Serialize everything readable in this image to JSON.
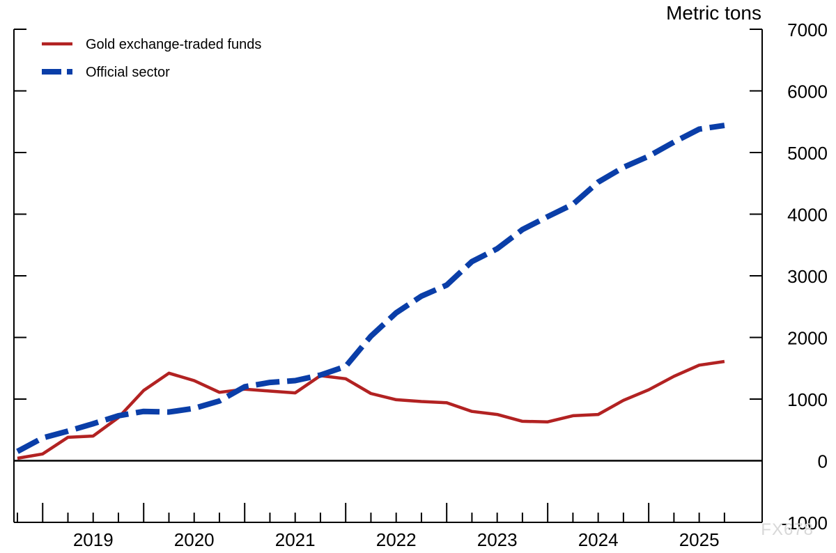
{
  "chart_data": {
    "type": "line",
    "unit_label": "Metric tons",
    "x_ticks": [
      "2019",
      "2020",
      "2021",
      "2022",
      "2023",
      "2024",
      "2025"
    ],
    "x_range": [
      2018.75,
      2025.875
    ],
    "ylim": [
      -1000,
      7000
    ],
    "y_ticks": [
      "-1000",
      "0",
      "1000",
      "2000",
      "3000",
      "4000",
      "5000",
      "6000",
      "7000"
    ],
    "y_axis_side": "right",
    "grid": false,
    "legend_placement": "top-left",
    "series": [
      {
        "name": "Gold exchange-traded funds",
        "color": "#b22222",
        "style": "solid",
        "x": [
          2018.75,
          2019.0,
          2019.25,
          2019.5,
          2019.75,
          2020.0,
          2020.25,
          2020.5,
          2020.75,
          2021.0,
          2021.25,
          2021.5,
          2021.75,
          2022.0,
          2022.25,
          2022.5,
          2022.75,
          2023.0,
          2023.25,
          2023.5,
          2023.75,
          2024.0,
          2024.25,
          2024.5,
          2024.75,
          2025.0,
          2025.25,
          2025.5,
          2025.75
        ],
        "values": [
          40,
          110,
          380,
          400,
          700,
          1140,
          1420,
          1300,
          1110,
          1160,
          1130,
          1100,
          1380,
          1330,
          1090,
          990,
          960,
          940,
          800,
          750,
          640,
          630,
          730,
          750,
          980,
          1150,
          1370,
          1550,
          1610
        ]
      },
      {
        "name": "Official sector",
        "color": "#0a3ea8",
        "style": "dashed",
        "x": [
          2018.75,
          2019.0,
          2019.25,
          2019.5,
          2019.75,
          2020.0,
          2020.25,
          2020.5,
          2020.75,
          2021.0,
          2021.25,
          2021.5,
          2021.75,
          2022.0,
          2022.25,
          2022.5,
          2022.75,
          2023.0,
          2023.25,
          2023.5,
          2023.75,
          2024.0,
          2024.25,
          2024.5,
          2024.75,
          2025.0,
          2025.25,
          2025.5,
          2025.75
        ],
        "values": [
          150,
          370,
          480,
          600,
          730,
          800,
          790,
          850,
          970,
          1200,
          1270,
          1300,
          1390,
          1530,
          2020,
          2400,
          2670,
          2850,
          3230,
          3440,
          3750,
          3960,
          4160,
          4520,
          4760,
          4940,
          5170,
          5380,
          5440
        ]
      }
    ]
  },
  "watermark": "FX678"
}
